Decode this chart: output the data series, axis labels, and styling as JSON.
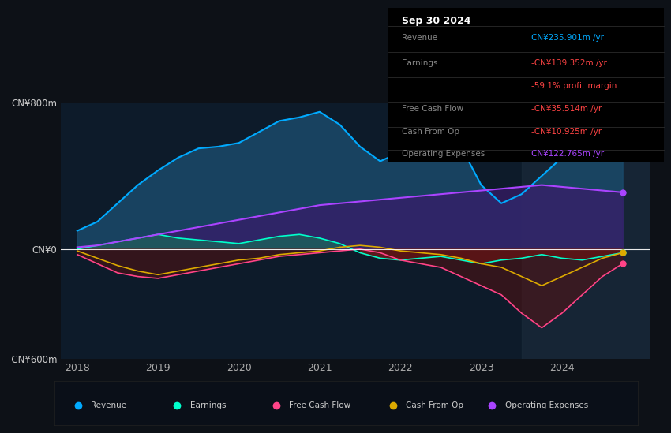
{
  "bg_color": "#0d1117",
  "plot_bg_color": "#0d1b2a",
  "years": [
    2018,
    2018.25,
    2018.5,
    2018.75,
    2019,
    2019.25,
    2019.5,
    2019.75,
    2020,
    2020.25,
    2020.5,
    2020.75,
    2021,
    2021.25,
    2021.5,
    2021.75,
    2022,
    2022.25,
    2022.5,
    2022.75,
    2023,
    2023.25,
    2023.5,
    2023.75,
    2024,
    2024.25,
    2024.5,
    2024.75
  ],
  "revenue": [
    100,
    150,
    250,
    350,
    430,
    500,
    550,
    560,
    580,
    640,
    700,
    720,
    750,
    680,
    560,
    480,
    530,
    580,
    620,
    560,
    350,
    250,
    300,
    400,
    500,
    560,
    580,
    500
  ],
  "earnings": [
    0,
    20,
    40,
    60,
    80,
    60,
    50,
    40,
    30,
    50,
    70,
    80,
    60,
    30,
    -20,
    -50,
    -60,
    -50,
    -40,
    -60,
    -80,
    -60,
    -50,
    -30,
    -50,
    -60,
    -40,
    -20
  ],
  "free_cash_flow": [
    -30,
    -80,
    -130,
    -150,
    -160,
    -140,
    -120,
    -100,
    -80,
    -60,
    -40,
    -30,
    -20,
    -10,
    0,
    -20,
    -60,
    -80,
    -100,
    -150,
    -200,
    -250,
    -350,
    -430,
    -350,
    -250,
    -150,
    -80
  ],
  "cash_from_op": [
    -10,
    -50,
    -90,
    -120,
    -140,
    -120,
    -100,
    -80,
    -60,
    -50,
    -30,
    -20,
    -10,
    10,
    20,
    10,
    -10,
    -20,
    -30,
    -50,
    -80,
    -100,
    -150,
    -200,
    -150,
    -100,
    -50,
    -20
  ],
  "operating_expenses": [
    10,
    20,
    40,
    60,
    80,
    100,
    120,
    140,
    160,
    180,
    200,
    220,
    240,
    250,
    260,
    270,
    280,
    290,
    300,
    310,
    320,
    330,
    340,
    350,
    340,
    330,
    320,
    310
  ],
  "revenue_color": "#00aaff",
  "earnings_color": "#00ffcc",
  "free_cash_flow_color": "#ff4488",
  "cash_from_op_color": "#ddaa00",
  "operating_expenses_color": "#aa44ff",
  "fill_revenue_color": "#1a4a6a",
  "fill_earnings_pos_color": "#1a6a5a",
  "fill_earnings_neg_color": "#6a1a1a",
  "fill_opex_color": "#3a1a6a",
  "ylim_min": -600,
  "ylim_max": 800,
  "ytick_labels": [
    "-CN¥600m",
    "CN¥0",
    "CN¥800m"
  ],
  "xlim_min": 2017.8,
  "xlim_max": 2025.1,
  "xticks": [
    2018,
    2019,
    2020,
    2021,
    2022,
    2023,
    2024
  ],
  "legend_labels": [
    "Revenue",
    "Earnings",
    "Free Cash Flow",
    "Cash From Op",
    "Operating Expenses"
  ],
  "legend_colors": [
    "#00aaff",
    "#00ffcc",
    "#ff4488",
    "#ddaa00",
    "#aa44ff"
  ],
  "highlight_start": 2023.5,
  "highlight_end": 2025.1,
  "info_rows": [
    {
      "label": "Revenue",
      "value": "CN¥235.901m /yr",
      "color": "#00aaff"
    },
    {
      "label": "Earnings",
      "value": "-CN¥139.352m /yr",
      "color": "#ff4444"
    },
    {
      "label": "",
      "value": "-59.1% profit margin",
      "color": "#ff4444"
    },
    {
      "label": "Free Cash Flow",
      "value": "-CN¥35.514m /yr",
      "color": "#ff4444"
    },
    {
      "label": "Cash From Op",
      "value": "-CN¥10.925m /yr",
      "color": "#ff4444"
    },
    {
      "label": "Operating Expenses",
      "value": "CN¥122.765m /yr",
      "color": "#aa44ff"
    }
  ]
}
